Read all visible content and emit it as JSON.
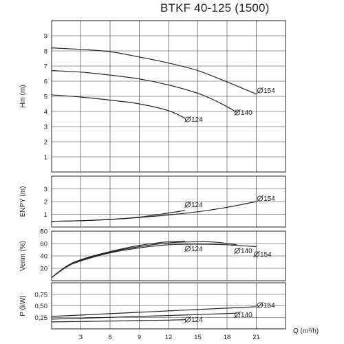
{
  "title": "BTKF 40-125 (1500)",
  "chart_data": [
    {
      "type": "line",
      "id": "head",
      "ylabel": "Hm (m)",
      "ylim": [
        0,
        10
      ],
      "yticks": [
        "1",
        "2",
        "3",
        "4",
        "5",
        "6",
        "7",
        "8",
        "9"
      ],
      "ytick_values": [
        1,
        2,
        3,
        4,
        5,
        6,
        7,
        8,
        9
      ],
      "xlim": [
        0,
        24
      ],
      "grid": true,
      "series": [
        {
          "name": "Ø154",
          "label": "154",
          "x": [
            0,
            3,
            6,
            9,
            12,
            15,
            18,
            19.5,
            21
          ],
          "y": [
            8.2,
            8.1,
            7.95,
            7.6,
            7.2,
            6.7,
            5.95,
            5.55,
            5.15
          ]
        },
        {
          "name": "Ø140",
          "label": "140",
          "x": [
            0,
            3,
            6,
            9,
            12,
            15,
            17,
            19
          ],
          "y": [
            6.7,
            6.6,
            6.4,
            6.15,
            5.75,
            5.2,
            4.65,
            3.95
          ]
        },
        {
          "name": "Ø124",
          "label": "124",
          "x": [
            0,
            3,
            6,
            9,
            12,
            13.7
          ],
          "y": [
            5.1,
            4.95,
            4.75,
            4.5,
            4.05,
            3.55
          ]
        }
      ]
    },
    {
      "type": "line",
      "id": "npsh",
      "ylabel": "ENPY (m)",
      "ylim": [
        0,
        4
      ],
      "yticks": [
        "1",
        "2",
        "3"
      ],
      "ytick_values": [
        1,
        2,
        3
      ],
      "xlim": [
        0,
        24
      ],
      "grid": true,
      "series": [
        {
          "name": "Ø154",
          "label": "154",
          "x": [
            0,
            3,
            6,
            9,
            12,
            15,
            18,
            21
          ],
          "y": [
            0.45,
            0.5,
            0.6,
            0.75,
            0.95,
            1.2,
            1.55,
            2.0
          ]
        },
        {
          "name": "Ø124",
          "label": "124",
          "x": [
            0,
            3,
            6,
            9,
            12,
            13.7
          ],
          "y": [
            0.45,
            0.5,
            0.6,
            0.78,
            1.1,
            1.3
          ]
        }
      ]
    },
    {
      "type": "line",
      "id": "efficiency",
      "ylabel": "Verim (%)",
      "ylim": [
        0,
        80
      ],
      "yticks": [
        "20",
        "40",
        "60",
        "80"
      ],
      "ytick_values": [
        20,
        40,
        60,
        80
      ],
      "xlim": [
        0,
        24
      ],
      "grid": true,
      "series": [
        {
          "name": "Ø154",
          "label": "154",
          "x": [
            0,
            1.5,
            3,
            6,
            9,
            12,
            15,
            18,
            21
          ],
          "y": [
            5,
            22,
            32,
            45,
            53,
            58,
            59,
            58,
            55
          ]
        },
        {
          "name": "Ø140",
          "label": "140",
          "x": [
            0,
            1.5,
            3,
            6,
            9,
            12,
            15,
            17,
            19
          ],
          "y": [
            5,
            22,
            33,
            46,
            55,
            61,
            63,
            62,
            58
          ]
        },
        {
          "name": "Ø124",
          "label": "124",
          "x": [
            0,
            1.5,
            3,
            6,
            9,
            12,
            13.7
          ],
          "y": [
            5,
            23,
            34,
            47,
            57,
            63,
            64
          ]
        }
      ]
    },
    {
      "type": "line",
      "id": "power",
      "ylabel": "P (kW)",
      "ylim": [
        0,
        1.0
      ],
      "yticks": [
        "0,25",
        "0,50",
        "0,75"
      ],
      "ytick_values": [
        0.25,
        0.5,
        0.75
      ],
      "xlabel": "Q (m³/h)",
      "xticks": [
        "3",
        "6",
        "9",
        "12",
        "15",
        "18",
        "21"
      ],
      "xtick_values": [
        3,
        6,
        9,
        12,
        15,
        18,
        21
      ],
      "xlim": [
        0,
        24
      ],
      "grid": true,
      "series": [
        {
          "name": "Ø154",
          "label": "154",
          "x": [
            0,
            3,
            6,
            9,
            12,
            15,
            18,
            21
          ],
          "y": [
            0.27,
            0.3,
            0.33,
            0.36,
            0.39,
            0.42,
            0.45,
            0.48
          ]
        },
        {
          "name": "Ø140",
          "label": "140",
          "x": [
            0,
            3,
            6,
            9,
            12,
            15,
            19
          ],
          "y": [
            0.21,
            0.23,
            0.25,
            0.27,
            0.29,
            0.31,
            0.34
          ]
        },
        {
          "name": "Ø124",
          "label": "124",
          "x": [
            0,
            3,
            6,
            9,
            12,
            13.7
          ],
          "y": [
            0.15,
            0.16,
            0.17,
            0.18,
            0.19,
            0.2
          ]
        }
      ]
    }
  ]
}
